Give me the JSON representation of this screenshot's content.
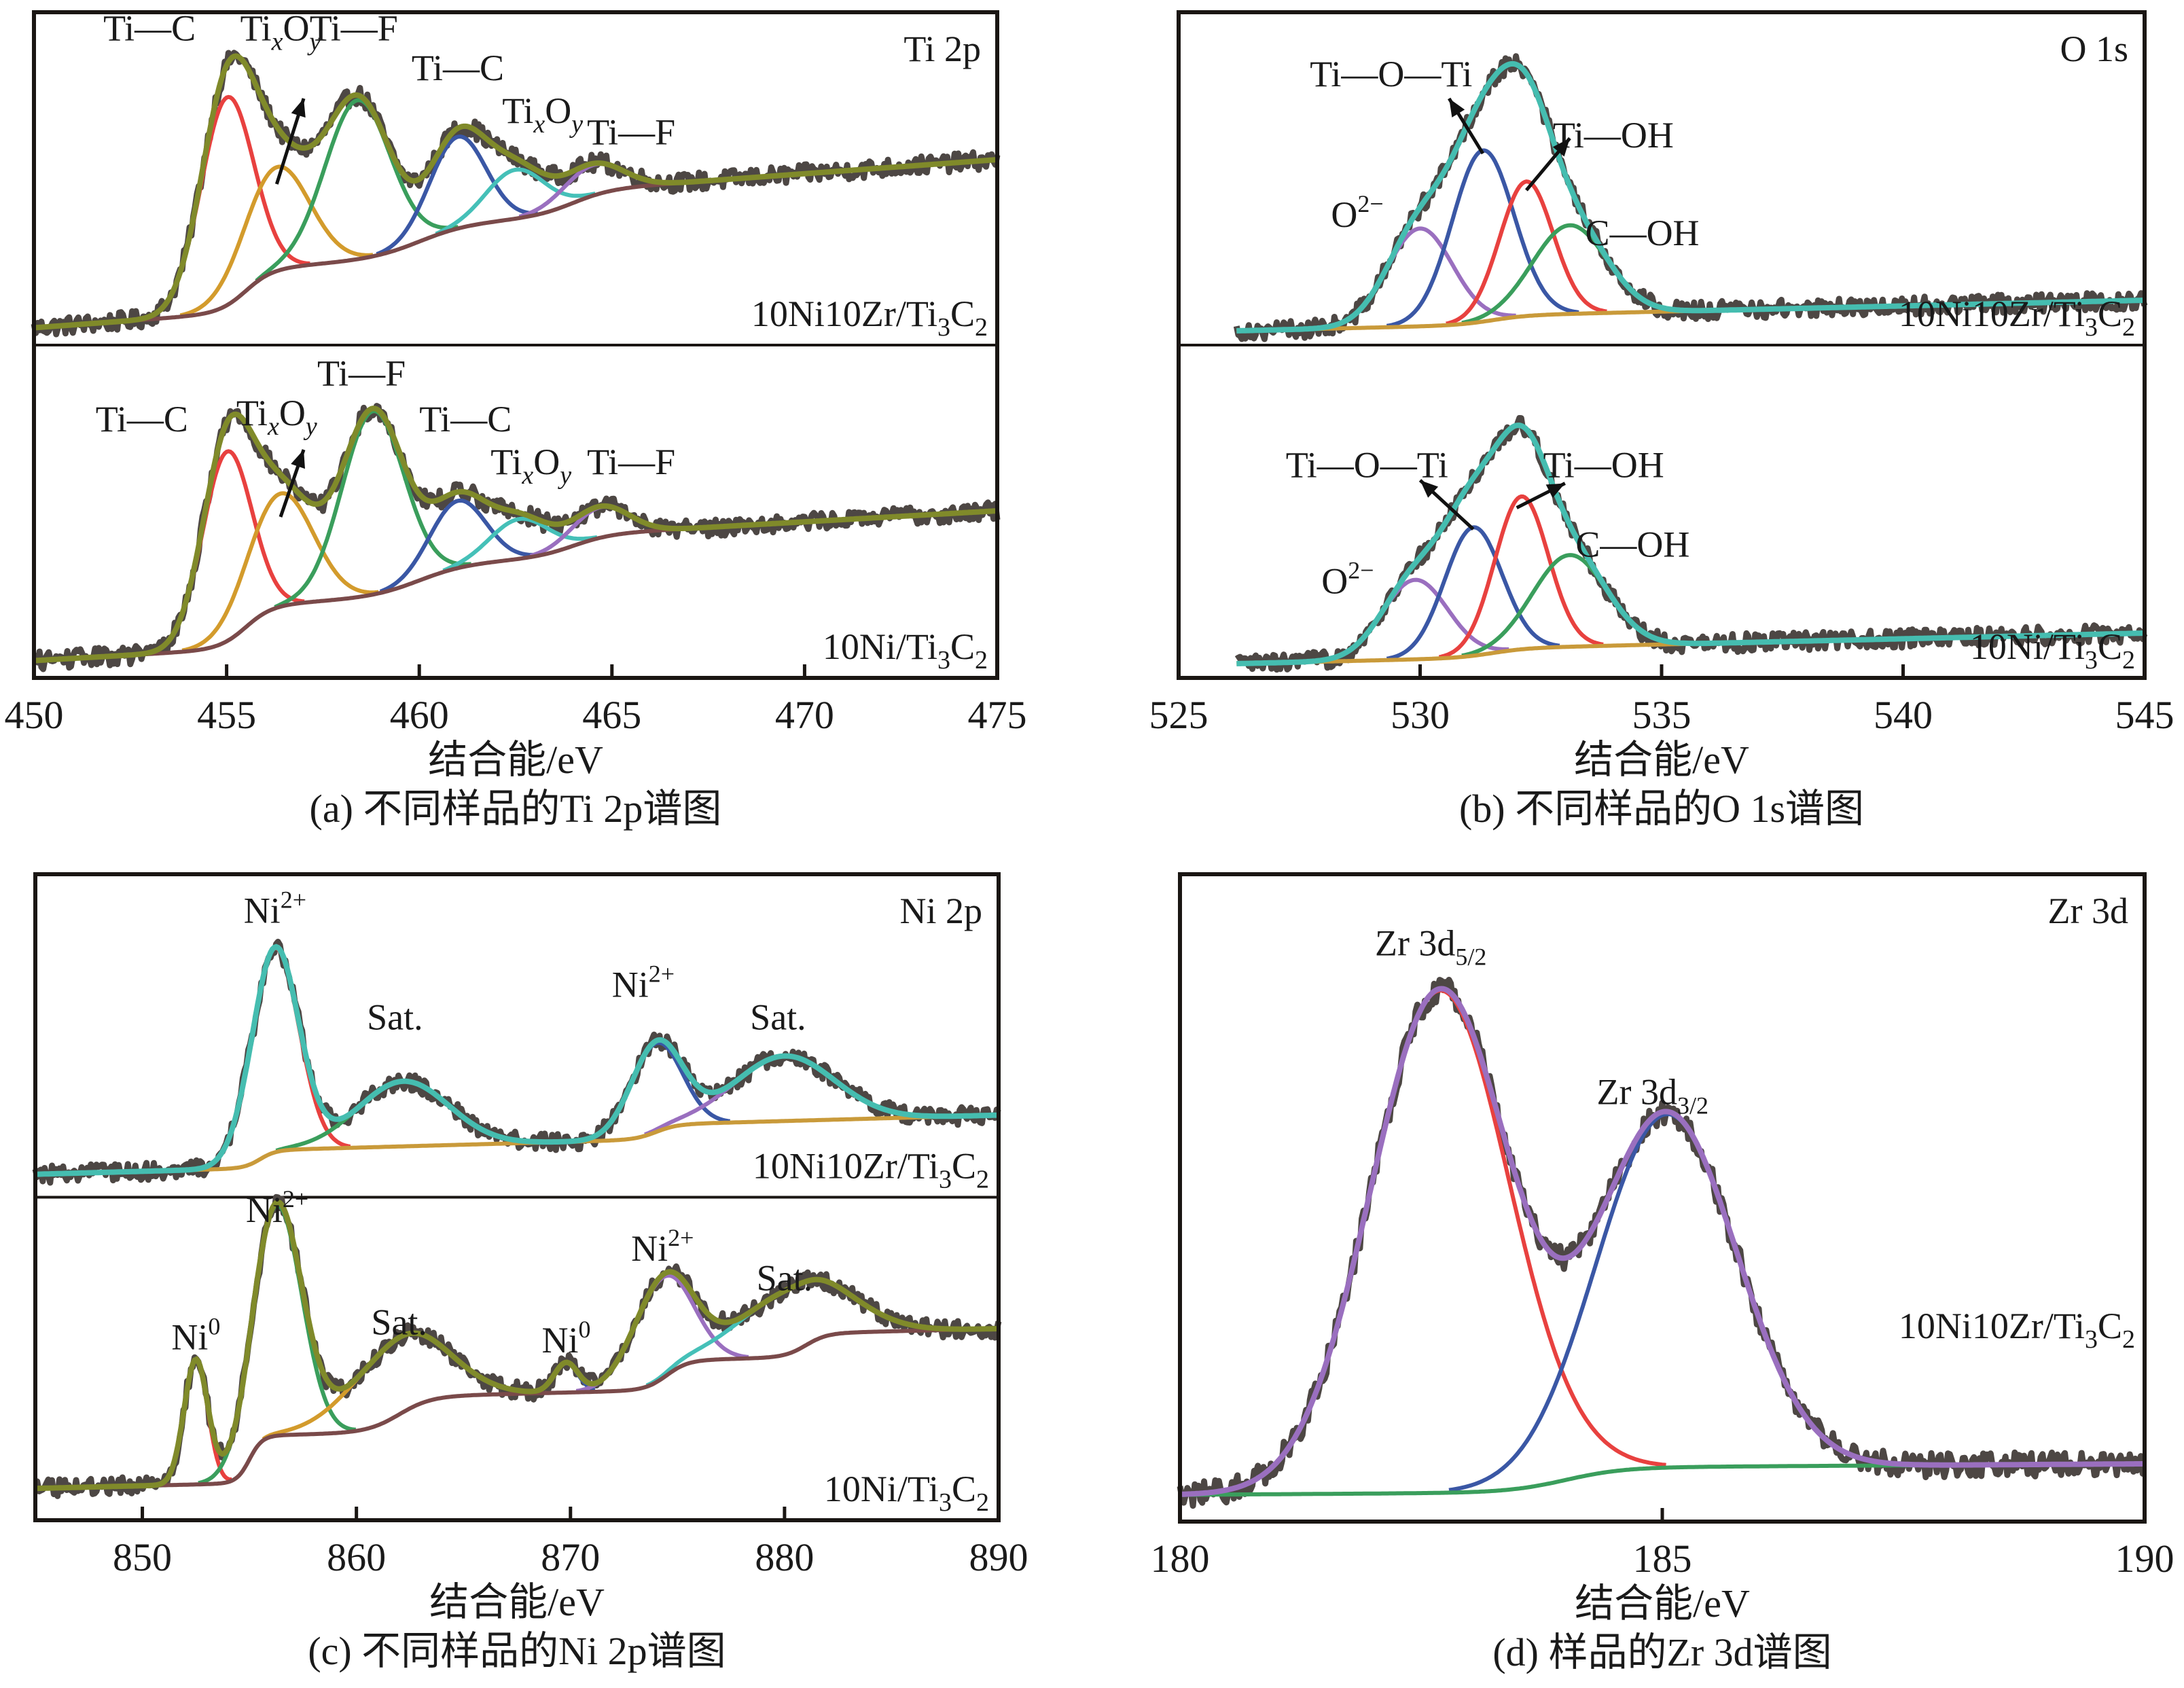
{
  "chart_data": [
    {
      "id": "a",
      "type": "line",
      "title": "Ti 2p",
      "caption": "(a) 不同样品的Ti 2p谱图",
      "xlabel": "结合能/eV",
      "ylabel": "",
      "xlim": [
        450,
        475
      ],
      "xticks": [
        450,
        455,
        460,
        465,
        470,
        475
      ],
      "grid": false,
      "colors": {
        "raw": "#4d4744",
        "envelope": "#808a2a",
        "background": "#7a4a4a",
        "components": [
          "#e8413f",
          "#d39b2c",
          "#3a9e5c",
          "#3a57a5",
          "#45c0b8",
          "#9a6fbf"
        ]
      },
      "subplots": [
        {
          "sample": "10Ni10Zr/Ti3C2",
          "sample_parts": {
            "main": "10Ni10Zr/Ti",
            "sub1": "3",
            "mid": "C",
            "sub2": "2"
          },
          "baseline": {
            "start": 0.03,
            "end": 0.58,
            "steps": [
              {
                "center": 455.5,
                "height": 0.14,
                "width": 1.4
              },
              {
                "center": 460,
                "height": 0.1,
                "width": 2.5
              },
              {
                "center": 464,
                "height": 0.08,
                "width": 2
              }
            ]
          },
          "components": [
            {
              "label": "Ti—C",
              "center": 455.0,
              "height": 0.68,
              "fwhm": 1.6
            },
            {
              "label": "TixOy",
              "center": 456.3,
              "height": 0.34,
              "fwhm": 2.0
            },
            {
              "label": "Ti—F",
              "center": 458.4,
              "height": 0.52,
              "fwhm": 2.0
            },
            {
              "label": "Ti—C",
              "center": 461.0,
              "height": 0.3,
              "fwhm": 1.7
            },
            {
              "label": "TixOy",
              "center": 462.5,
              "height": 0.16,
              "fwhm": 1.8
            },
            {
              "label": "Ti—F",
              "center": 464.5,
              "height": 0.1,
              "fwhm": 1.8
            }
          ],
          "annotations": [
            {
              "text": "Ti—C",
              "x": 453.0,
              "y": 0.97
            },
            {
              "text": "TixOy",
              "x": 456.4,
              "y": 0.97,
              "arrow_from": [
                456.3,
                0.5
              ],
              "arrow_to": [
                457.0,
                0.78
              ]
            },
            {
              "text": "Ti—F",
              "x": 458.3,
              "y": 0.97
            },
            {
              "text": "Ti—C",
              "x": 461.0,
              "y": 0.84
            },
            {
              "text": "TixOy",
              "x": 463.2,
              "y": 0.7
            },
            {
              "text": "Ti—F",
              "x": 465.5,
              "y": 0.63
            }
          ]
        },
        {
          "sample": "10Ni/Ti3C2",
          "sample_parts": {
            "main": "10Ni/Ti",
            "sub1": "3",
            "mid": "C",
            "sub2": "2"
          },
          "baseline": {
            "start": 0.03,
            "end": 0.52,
            "steps": [
              {
                "center": 455.5,
                "height": 0.14,
                "width": 1.4
              },
              {
                "center": 460,
                "height": 0.1,
                "width": 2.5
              },
              {
                "center": 464,
                "height": 0.07,
                "width": 2
              }
            ]
          },
          "components": [
            {
              "label": "Ti—C",
              "center": 455.0,
              "height": 0.62,
              "fwhm": 1.5
            },
            {
              "label": "TixOy",
              "center": 456.4,
              "height": 0.37,
              "fwhm": 2.0
            },
            {
              "label": "Ti—F",
              "center": 458.8,
              "height": 0.6,
              "fwhm": 1.9
            },
            {
              "label": "Ti—C",
              "center": 461.0,
              "height": 0.22,
              "fwhm": 1.7
            },
            {
              "label": "TixOy",
              "center": 462.6,
              "height": 0.13,
              "fwhm": 1.8
            },
            {
              "label": "Ti—F",
              "center": 464.7,
              "height": 0.1,
              "fwhm": 1.7
            }
          ],
          "annotations": [
            {
              "text": "Ti—C",
              "x": 452.8,
              "y": 0.78
            },
            {
              "text": "TixOy",
              "x": 456.3,
              "y": 0.8,
              "arrow_from": [
                456.4,
                0.5
              ],
              "arrow_to": [
                457.0,
                0.72
              ]
            },
            {
              "text": "Ti—F",
              "x": 458.5,
              "y": 0.93
            },
            {
              "text": "Ti—C",
              "x": 461.2,
              "y": 0.78
            },
            {
              "text": "TixOy",
              "x": 462.9,
              "y": 0.64
            },
            {
              "text": "Ti—F",
              "x": 465.5,
              "y": 0.64
            }
          ]
        }
      ]
    },
    {
      "id": "b",
      "type": "line",
      "title": "O 1s",
      "caption": "(b) 不同样品的O 1s谱图",
      "xlabel": "结合能/eV",
      "ylabel": "",
      "xlim": [
        525,
        545
      ],
      "xticks": [
        525,
        530,
        535,
        540,
        545
      ],
      "grid": false,
      "colors": {
        "raw": "#4d4744",
        "envelope": "#45bdb0",
        "background": "#c99a3a",
        "components": [
          "#9a6fbf",
          "#3a57a5",
          "#e8413f",
          "#3a9e5c"
        ]
      },
      "subplots": [
        {
          "sample": "10Ni10Zr/Ti3C2",
          "sample_parts": {
            "main": "10Ni10Zr/Ti",
            "sub1": "3",
            "mid": "C",
            "sub2": "2"
          },
          "baseline": {
            "start": 0.02,
            "end": 0.12,
            "steps": [
              {
                "center": 531.5,
                "height": 0.03,
                "width": 1.5
              }
            ]
          },
          "components": [
            {
              "label": "O2−",
              "center": 530.0,
              "height": 0.32,
              "fwhm": 1.6
            },
            {
              "label": "Ti—O—Ti",
              "center": 531.3,
              "height": 0.56,
              "fwhm": 1.5
            },
            {
              "label": "Ti—OH",
              "center": 532.2,
              "height": 0.44,
              "fwhm": 1.3
            },
            {
              "label": "C—OH",
              "center": 533.1,
              "height": 0.29,
              "fwhm": 1.8
            }
          ],
          "annotations": [
            {
              "text": "Ti—O—Ti",
              "x": 529.4,
              "y": 0.82,
              "arrow_from": [
                531.3,
                0.6
              ],
              "arrow_to": [
                530.6,
                0.78
              ]
            },
            {
              "text": "Ti—OH",
              "x": 534.0,
              "y": 0.62,
              "arrow_from": [
                532.2,
                0.48
              ],
              "arrow_to": [
                533.1,
                0.65
              ]
            },
            {
              "text": "O2−",
              "x": 528.7,
              "y": 0.36
            },
            {
              "text": "C—OH",
              "x": 534.6,
              "y": 0.3
            }
          ]
        },
        {
          "sample": "10Ni/Ti3C2",
          "sample_parts": {
            "main": "10Ni/Ti",
            "sub1": "3",
            "mid": "C",
            "sub2": "2"
          },
          "baseline": {
            "start": 0.02,
            "end": 0.12,
            "steps": [
              {
                "center": 531.5,
                "height": 0.03,
                "width": 1.5
              }
            ]
          },
          "components": [
            {
              "label": "O2−",
              "center": 529.9,
              "height": 0.26,
              "fwhm": 1.6
            },
            {
              "label": "Ti—O—Ti",
              "center": 531.1,
              "height": 0.42,
              "fwhm": 1.4
            },
            {
              "label": "Ti—OH",
              "center": 532.1,
              "height": 0.5,
              "fwhm": 1.3
            },
            {
              "label": "C—OH",
              "center": 533.1,
              "height": 0.3,
              "fwhm": 1.8
            }
          ],
          "annotations": [
            {
              "text": "Ti—O—Ti",
              "x": 528.9,
              "y": 0.63,
              "arrow_from": [
                531.1,
                0.46
              ],
              "arrow_to": [
                530.0,
                0.62
              ]
            },
            {
              "text": "Ti—OH",
              "x": 533.8,
              "y": 0.63,
              "arrow_from": [
                532.0,
                0.53
              ],
              "arrow_to": [
                533.0,
                0.61
              ]
            },
            {
              "text": "O2−",
              "x": 528.5,
              "y": 0.25
            },
            {
              "text": "C—OH",
              "x": 534.4,
              "y": 0.37
            }
          ]
        }
      ]
    },
    {
      "id": "c",
      "type": "line",
      "title": "Ni 2p",
      "caption": "(c) 不同样品的Ni 2p谱图",
      "xlabel": "结合能/eV",
      "ylabel": "",
      "xlim": [
        845,
        890
      ],
      "xticks": [
        850,
        860,
        870,
        880,
        890
      ],
      "grid": false,
      "subplots": [
        {
          "sample": "10Ni10Zr/Ti3C2",
          "sample_parts": {
            "main": "10Ni10Zr/Ti",
            "sub1": "3",
            "mid": "C",
            "sub2": "2"
          },
          "colors": {
            "raw": "#4d4744",
            "envelope": "#45bdb0",
            "background": "#c99a3a",
            "components": [
              "#e8413f",
              "#3a9e5c",
              "#3a57a5",
              "#9a6fbf"
            ]
          },
          "baseline": {
            "start": 0.05,
            "end": 0.25,
            "steps": [
              {
                "center": 855.5,
                "height": 0.06,
                "width": 1.5
              },
              {
                "center": 874,
                "height": 0.05,
                "width": 2
              }
            ]
          },
          "components": [
            {
              "label": "Ni2+",
              "center": 856.2,
              "height": 0.69,
              "fwhm": 2.6
            },
            {
              "label": "Sat.",
              "center": 862.2,
              "height": 0.22,
              "fwhm": 5.0
            },
            {
              "label": "Ni2+",
              "center": 874.0,
              "height": 0.3,
              "fwhm": 2.8
            },
            {
              "label": "Sat.",
              "center": 880.0,
              "height": 0.22,
              "fwhm": 5.5
            }
          ],
          "annotations": [
            {
              "text": "Ni2+",
              "x": 856.2,
              "y": 0.9
            },
            {
              "text": "Sat.",
              "x": 861.8,
              "y": 0.54
            },
            {
              "text": "Ni2+",
              "x": 873.4,
              "y": 0.65
            },
            {
              "text": "Sat.",
              "x": 879.7,
              "y": 0.54
            }
          ]
        },
        {
          "sample": "10Ni/Ti3C2",
          "sample_parts": {
            "main": "10Ni/Ti",
            "sub1": "3",
            "mid": "C",
            "sub2": "2"
          },
          "colors": {
            "raw": "#4d4744",
            "envelope": "#808a2a",
            "background": "#7a4a4a",
            "components": [
              "#e8413f",
              "#3a9e5c",
              "#d39b2c",
              "#3a57a5",
              "#9a6fbf",
              "#45c0b8"
            ]
          },
          "baseline": {
            "start": 0.08,
            "end": 0.62,
            "steps": [
              {
                "center": 855,
                "height": 0.16,
                "width": 1.2
              },
              {
                "center": 862,
                "height": 0.12,
                "width": 3
              },
              {
                "center": 874.5,
                "height": 0.1,
                "width": 2
              },
              {
                "center": 881,
                "height": 0.08,
                "width": 2
              }
            ]
          },
          "components": [
            {
              "label": "Ni0",
              "center": 852.5,
              "height": 0.42,
              "fwhm": 1.3
            },
            {
              "label": "Ni2+",
              "center": 856.3,
              "height": 0.78,
              "fwhm": 2.7
            },
            {
              "label": "Sat.",
              "center": 862.0,
              "height": 0.26,
              "fwhm": 5.2
            },
            {
              "label": "Ni0",
              "center": 869.8,
              "height": 0.1,
              "fwhm": 1.3
            },
            {
              "label": "Ni2+",
              "center": 874.3,
              "height": 0.34,
              "fwhm": 3.2
            },
            {
              "label": "Sat.",
              "center": 880.5,
              "height": 0.22,
              "fwhm": 5.8
            }
          ],
          "annotations": [
            {
              "text": "Ni0",
              "x": 852.5,
              "y": 0.55
            },
            {
              "text": "Ni2+",
              "x": 856.3,
              "y": 0.98
            },
            {
              "text": "Sat.",
              "x": 862.0,
              "y": 0.6
            },
            {
              "text": "Ni0",
              "x": 869.8,
              "y": 0.54
            },
            {
              "text": "Ni2+",
              "x": 874.3,
              "y": 0.85
            },
            {
              "text": "Sat.",
              "x": 880.0,
              "y": 0.75
            }
          ]
        }
      ]
    },
    {
      "id": "d",
      "type": "line",
      "title": "Zr 3d",
      "caption": "(d) 样品的Zr 3d谱图",
      "xlabel": "结合能/eV",
      "ylabel": "",
      "xlim": [
        180,
        190
      ],
      "xticks": [
        180,
        185,
        190
      ],
      "grid": false,
      "colors": {
        "raw": "#4d4744",
        "envelope": "#9a6fbf",
        "background": "#3a9e5c",
        "components": [
          "#e8413f",
          "#3a57a5"
        ]
      },
      "subplots": [
        {
          "sample": "10Ni10Zr/Ti3C2",
          "sample_parts": {
            "main": "10Ni10Zr/Ti",
            "sub1": "3",
            "mid": "C",
            "sub2": "2"
          },
          "baseline": {
            "start": 0.03,
            "end": 0.08,
            "steps": [
              {
                "center": 184,
                "height": 0.04,
                "width": 1.2
              }
            ]
          },
          "components": [
            {
              "label": "Zr 3d5/2",
              "center": 182.7,
              "height": 0.81,
              "fwhm": 1.7
            },
            {
              "label": "Zr 3d3/2",
              "center": 185.05,
              "height": 0.57,
              "fwhm": 1.7
            }
          ],
          "annotations": [
            {
              "text": "Zr 3d5/2",
              "x": 182.6,
              "y": 0.9
            },
            {
              "text": "Zr 3d3/2",
              "x": 184.9,
              "y": 0.66
            }
          ]
        }
      ]
    }
  ],
  "figure": {
    "panels": [
      {
        "id": "a",
        "corner_label": "Ti 2p",
        "axis_title": "结合能/eV",
        "caption": "(a) 不同样品的Ti 2p谱图",
        "samples": [
          "10Ni10Zr/Ti3C2",
          "10Ni/Ti3C2"
        ]
      },
      {
        "id": "b",
        "corner_label": "O 1s",
        "axis_title": "结合能/eV",
        "caption": "(b) 不同样品的O 1s谱图",
        "samples": [
          "10Ni10Zr/Ti3C2",
          "10Ni/Ti3C2"
        ]
      },
      {
        "id": "c",
        "corner_label": "Ni 2p",
        "axis_title": "结合能/eV",
        "caption": "(c) 不同样品的Ni 2p谱图",
        "samples": [
          "10Ni10Zr/Ti3C2",
          "10Ni/Ti3C2"
        ]
      },
      {
        "id": "d",
        "corner_label": "Zr 3d",
        "axis_title": "结合能/eV",
        "caption": "(d) 样品的Zr 3d谱图",
        "samples": [
          "10Ni10Zr/Ti3C2"
        ]
      }
    ]
  }
}
